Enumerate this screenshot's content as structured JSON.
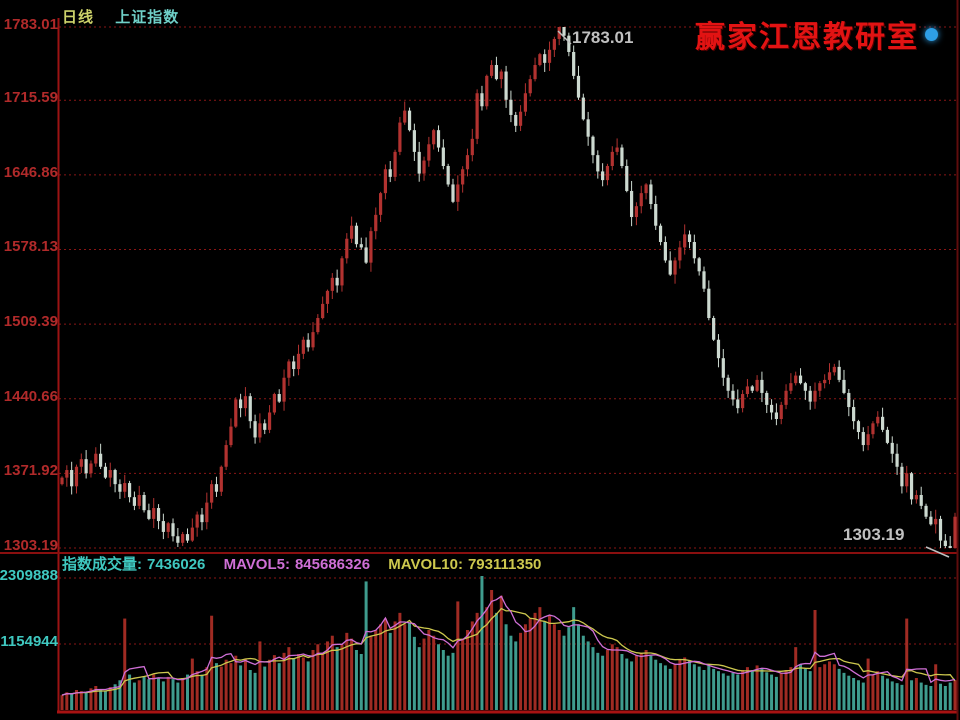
{
  "header": {
    "period_label": "日线",
    "symbol_label": "上证指数"
  },
  "brand": {
    "text": "赢家江恩教研室",
    "color": "#e21313",
    "dot_color": "#2e9fe6"
  },
  "volume_header": {
    "volume_label": "指数成交量:",
    "volume_value": "7436026",
    "mavol5_label": "MAVOL5:",
    "mavol5_value": "845686326",
    "mavol10_label": "MAVOL10:",
    "mavol10_value": "793111350"
  },
  "chart_data": {
    "type": "candlestick",
    "symbol": "上证指数",
    "period": "日线",
    "legend_position": "none",
    "grid": "dotted-red-horizontal",
    "price_axis": {
      "ticks": [
        1783.01,
        1715.59,
        1646.86,
        1578.13,
        1509.39,
        1440.66,
        1371.92,
        1303.19
      ],
      "max": 1783.01,
      "min": 1303.19
    },
    "volume_axis": {
      "ticks": [
        2309888,
        1154944
      ],
      "max": 2425000,
      "min": 0
    },
    "annotations": {
      "high_label": "1783.01",
      "low_label": "1303.19"
    },
    "first_open": 1362,
    "closes": [
      1368,
      1375,
      1360,
      1378,
      1385,
      1372,
      1381,
      1390,
      1378,
      1368,
      1375,
      1362,
      1355,
      1363,
      1350,
      1342,
      1352,
      1338,
      1330,
      1340,
      1328,
      1318,
      1326,
      1314,
      1308,
      1316,
      1310,
      1322,
      1334,
      1327,
      1345,
      1362,
      1355,
      1378,
      1398,
      1415,
      1440,
      1432,
      1443,
      1420,
      1405,
      1418,
      1412,
      1428,
      1445,
      1438,
      1460,
      1475,
      1468,
      1482,
      1495,
      1488,
      1502,
      1515,
      1528,
      1540,
      1552,
      1545,
      1570,
      1588,
      1600,
      1583,
      1580,
      1566,
      1595,
      1610,
      1630,
      1652,
      1645,
      1668,
      1695,
      1706,
      1688,
      1668,
      1648,
      1660,
      1675,
      1688,
      1672,
      1655,
      1638,
      1622,
      1638,
      1652,
      1665,
      1680,
      1722,
      1710,
      1738,
      1748,
      1735,
      1742,
      1716,
      1702,
      1692,
      1705,
      1722,
      1735,
      1748,
      1758,
      1750,
      1762,
      1772,
      1783,
      1775,
      1760,
      1738,
      1718,
      1698,
      1682,
      1665,
      1650,
      1642,
      1655,
      1668,
      1672,
      1655,
      1632,
      1608,
      1618,
      1630,
      1638,
      1620,
      1600,
      1585,
      1568,
      1555,
      1568,
      1580,
      1592,
      1585,
      1570,
      1558,
      1542,
      1515,
      1495,
      1478,
      1460,
      1448,
      1440,
      1432,
      1445,
      1452,
      1448,
      1458,
      1446,
      1435,
      1428,
      1422,
      1435,
      1448,
      1455,
      1462,
      1455,
      1448,
      1438,
      1448,
      1455,
      1458,
      1465,
      1470,
      1458,
      1446,
      1433,
      1420,
      1410,
      1398,
      1408,
      1418,
      1424,
      1412,
      1400,
      1390,
      1378,
      1360,
      1372,
      1348,
      1352,
      1342,
      1332,
      1325,
      1330,
      1310,
      1305,
      1303.19,
      1332
    ],
    "volumes": [
      260000,
      310000,
      280000,
      350000,
      330000,
      300000,
      380000,
      420000,
      360000,
      330000,
      400000,
      450000,
      520000,
      1600000,
      620000,
      480000,
      520000,
      580000,
      540000,
      620000,
      560000,
      500000,
      580000,
      540000,
      480000,
      560000,
      620000,
      900000,
      680000,
      620000,
      750000,
      1650000,
      820000,
      760000,
      880000,
      820000,
      950000,
      780000,
      900000,
      700000,
      650000,
      1200000,
      760000,
      880000,
      960000,
      820000,
      1000000,
      1100000,
      900000,
      980000,
      920000,
      850000,
      1050000,
      1150000,
      1000000,
      1200000,
      1300000,
      1100000,
      1150000,
      1350000,
      1250000,
      1050000,
      980000,
      2250000,
      1300000,
      1400000,
      1500000,
      1600000,
      1350000,
      1550000,
      1700000,
      1500000,
      1520000,
      1280000,
      1100000,
      1250000,
      1400000,
      1300000,
      1150000,
      1050000,
      950000,
      1000000,
      1900000,
      1250000,
      1400000,
      1550000,
      1700000,
      2350000,
      1800000,
      2100000,
      1700000,
      2000000,
      1500000,
      1300000,
      1200000,
      1350000,
      1500000,
      1600000,
      1700000,
      1800000,
      1550000,
      1650000,
      1500000,
      1400000,
      1300000,
      1450000,
      1800000,
      1500000,
      1300000,
      1200000,
      1100000,
      1000000,
      950000,
      1050000,
      1150000,
      1100000,
      980000,
      900000,
      850000,
      950000,
      1000000,
      1050000,
      950000,
      880000,
      820000,
      780000,
      720000,
      800000,
      880000,
      920000,
      860000,
      800000,
      760000,
      700000,
      780000,
      720000,
      680000,
      640000,
      600000,
      650000,
      620000,
      700000,
      750000,
      700000,
      780000,
      720000,
      660000,
      620000,
      580000,
      650000,
      700000,
      750000,
      1100000,
      800000,
      720000,
      680000,
      1750000,
      750000,
      800000,
      850000,
      800000,
      720000,
      650000,
      600000,
      560000,
      520000,
      480000,
      900000,
      620000,
      680000,
      600000,
      550000,
      500000,
      470000,
      440000,
      1600000,
      520000,
      560000,
      480000,
      440000,
      420000,
      800000,
      460000,
      420000,
      480000,
      520000
    ],
    "colors": {
      "background": "#000000",
      "up": "#b23230",
      "down": "#ccd9d0",
      "volume_up": "#a02b23",
      "volume_down": "#3f9c8e",
      "grid": "#8a1616",
      "axis_line": "#9c1313",
      "divider": "#8a0f0f",
      "bottom_line": "#a81212",
      "right_border": "#5f0d0d",
      "price_label": "#b02a2a",
      "volume_label": "#3fc8c0",
      "mavol5": "#cf6fd6",
      "mavol10": "#cdc84e",
      "annotation": "#c0c0c0",
      "title_period": "#cdd26a",
      "title_symbol": "#6fd0c8"
    }
  }
}
